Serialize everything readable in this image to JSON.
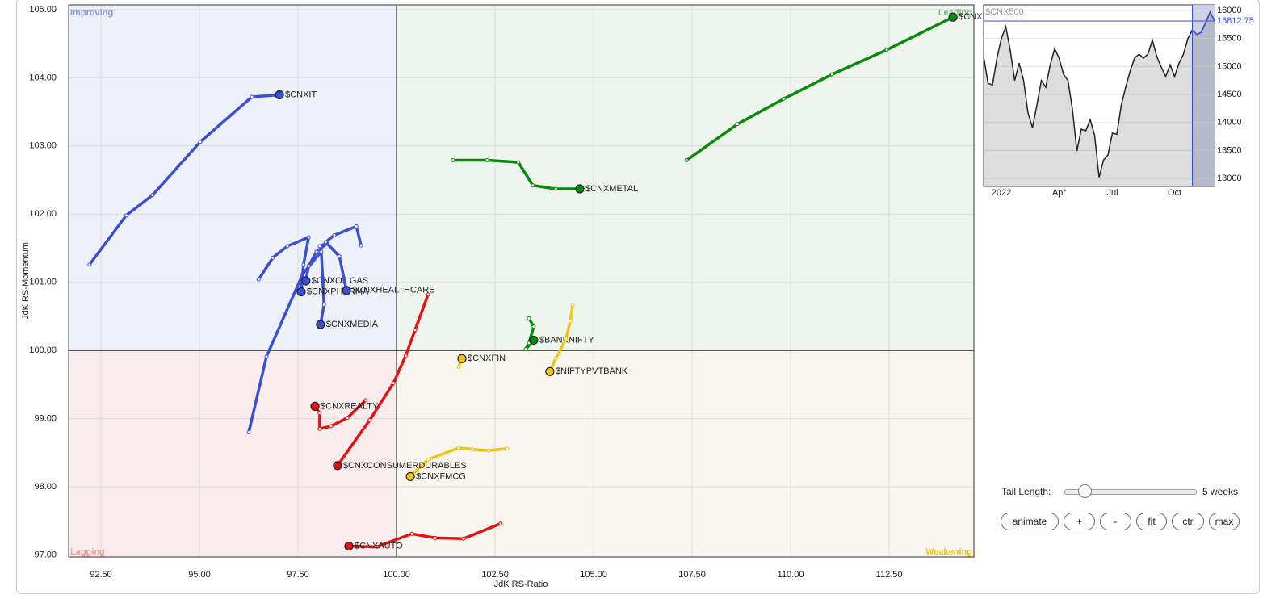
{
  "chart_data": [
    {
      "type": "rrg",
      "x_label": "JdK RS-Ratio",
      "y_label": "JdK RS-Momentum",
      "xlim": [
        91.68,
        114.65
      ],
      "ylim": [
        96.97,
        105.07
      ],
      "center": 100,
      "grid": true,
      "xticks": [
        {
          "value": 92.5,
          "label": "92.50"
        },
        {
          "value": 95,
          "label": "95.00"
        },
        {
          "value": 97.5,
          "label": "97.50"
        },
        {
          "value": 100,
          "label": "100.00"
        },
        {
          "value": 102.5,
          "label": "102.50"
        },
        {
          "value": 105,
          "label": "105.00"
        },
        {
          "value": 107.5,
          "label": "107.50"
        },
        {
          "value": 110,
          "label": "110.00"
        },
        {
          "value": 112.5,
          "label": "112.50"
        }
      ],
      "yticks": [
        {
          "value": 97,
          "label": "97.00"
        },
        {
          "value": 98,
          "label": "98.00"
        },
        {
          "value": 99,
          "label": "99.00"
        },
        {
          "value": 100,
          "label": "100.00"
        },
        {
          "value": 101,
          "label": "101.00"
        },
        {
          "value": 102,
          "label": "102.00"
        },
        {
          "value": 103,
          "label": "103.00"
        },
        {
          "value": 104,
          "label": "104.00"
        },
        {
          "value": 105,
          "label": "105.00"
        }
      ],
      "quadrants": [
        {
          "name": "Improving",
          "color": "#8d9be6"
        },
        {
          "name": "Leading",
          "color": "#7cc07c"
        },
        {
          "name": "Lagging",
          "color": "#f09a9a"
        },
        {
          "name": "Weakening",
          "color": "#f0c419"
        }
      ],
      "series": [
        {
          "name": "$CNXIT",
          "color": "#3b4fd4",
          "x": [
            92.21,
            93.14,
            93.81,
            95.02,
            96.33,
            97.03
          ],
          "values": [
            101.26,
            101.98,
            102.28,
            103.06,
            103.72,
            103.75
          ]
        },
        {
          "name": "$CNXPSUBANK",
          "color": "#0a8a0a",
          "x": [
            107.36,
            108.65,
            109.82,
            111.05,
            112.44,
            114.12
          ],
          "values": [
            102.79,
            103.32,
            103.69,
            104.05,
            104.41,
            104.89
          ]
        },
        {
          "name": "$CNXMETAL",
          "color": "#0a8a0a",
          "x": [
            101.43,
            102.3,
            103.09,
            103.46,
            104.04,
            104.65
          ],
          "values": [
            102.79,
            102.79,
            102.76,
            102.42,
            102.37,
            102.37
          ]
        },
        {
          "name": "$BANKNIFTY",
          "color": "#0a8a0a",
          "x": [
            103.36,
            103.48,
            103.36,
            103.28,
            103.48
          ],
          "values": [
            100.47,
            100.35,
            100.11,
            100.02,
            100.15
          ]
        },
        {
          "name": "$NIFTYPVTBANK",
          "color": "#f0c419",
          "x": [
            104.47,
            104.41,
            104.3,
            104.04,
            103.89
          ],
          "values": [
            100.67,
            100.43,
            100.17,
            99.88,
            99.69
          ]
        },
        {
          "name": "$CNXFIN",
          "color": "#f0c419",
          "x": [
            101.58,
            101.62,
            101.66
          ],
          "values": [
            99.76,
            99.84,
            99.88
          ]
        },
        {
          "name": "$CNXFMCG",
          "color": "#f0c419",
          "x": [
            102.81,
            102.34,
            101.93,
            101.58,
            100.8,
            100.35
          ],
          "values": [
            98.56,
            98.53,
            98.55,
            98.57,
            98.4,
            98.15
          ]
        },
        {
          "name": "$CNXAUTO",
          "color": "#e81010",
          "x": [
            102.64,
            101.7,
            100.98,
            100.39,
            99.49,
            98.79
          ],
          "values": [
            97.46,
            97.24,
            97.25,
            97.31,
            97.12,
            97.13
          ]
        },
        {
          "name": "$CNXCONSUMERDURABLES",
          "color": "#e81010",
          "x": [
            100.8,
            100.47,
            100.23,
            99.92,
            99.32,
            98.5
          ],
          "values": [
            100.82,
            100.3,
            99.92,
            99.52,
            98.98,
            98.31
          ]
        },
        {
          "name": "$CNXREALTY",
          "color": "#e81010",
          "x": [
            99.22,
            98.75,
            98.34,
            98.05,
            98.05,
            97.93
          ],
          "values": [
            99.27,
            99.01,
            98.89,
            98.85,
            99.08,
            99.18
          ]
        },
        {
          "name": "$CNXMEDIA",
          "color": "#3b4fd4",
          "x": [
            96.25,
            96.7,
            97.62,
            98.09,
            98.16,
            98.07
          ],
          "values": [
            98.8,
            99.91,
            101.12,
            101.45,
            100.67,
            100.38
          ]
        },
        {
          "name": "$CNXPHARMA",
          "color": "#3b4fd4",
          "x": [
            96.5,
            96.86,
            97.23,
            97.77,
            97.64,
            97.58
          ],
          "values": [
            101.04,
            101.36,
            101.53,
            101.66,
            101.26,
            100.86
          ]
        },
        {
          "name": "$CNXOILGAS",
          "color": "#3b4fd4",
          "x": [
            98.05,
            98.24,
            97.97,
            97.77,
            97.7
          ],
          "values": [
            101.53,
            101.57,
            101.45,
            101.24,
            101.02
          ]
        },
        {
          "name": "$CNXHEALTHCARE",
          "color": "#3b4fd4",
          "x": [
            99.1,
            98.98,
            98.42,
            98.2,
            98.55,
            98.73
          ],
          "values": [
            101.54,
            101.82,
            101.69,
            101.59,
            101.38,
            100.88
          ]
        }
      ]
    },
    {
      "type": "line",
      "title": "$CNX500",
      "color": "#222222",
      "last_value": 15812.75,
      "ylim": [
        12857,
        16101
      ],
      "yticks": [
        13000,
        13500,
        14000,
        14500,
        15000,
        15500,
        16000
      ],
      "categories": [
        null,
        null,
        null,
        null,
        "2022",
        null,
        null,
        null,
        null,
        null,
        null,
        null,
        null,
        null,
        null,
        null,
        null,
        "Apr",
        null,
        null,
        null,
        null,
        null,
        null,
        null,
        null,
        null,
        null,
        null,
        "Jul",
        null,
        null,
        null,
        null,
        null,
        null,
        null,
        null,
        null,
        null,
        null,
        null,
        null,
        "Oct",
        null,
        null,
        null,
        null,
        null,
        null,
        null,
        null,
        null
      ],
      "values": [
        15180,
        14700,
        14670,
        15150,
        15500,
        15710,
        15290,
        14750,
        15060,
        14750,
        14170,
        13910,
        14310,
        14750,
        14630,
        15030,
        15320,
        15150,
        14860,
        14750,
        14240,
        13490,
        13880,
        13850,
        14050,
        13770,
        13020,
        13330,
        13420,
        13810,
        13790,
        14310,
        14630,
        14920,
        15150,
        15220,
        15150,
        15220,
        15470,
        15180,
        14990,
        14820,
        15030,
        14820,
        15060,
        15220,
        15500,
        15650,
        15570,
        15610,
        15780,
        15970,
        15812.75
      ]
    }
  ],
  "controls": {
    "tail_label": "Tail Length:",
    "tail_value": "5 weeks",
    "buttons": [
      "animate",
      "+",
      "-",
      "fit",
      "ctr",
      "max"
    ]
  }
}
